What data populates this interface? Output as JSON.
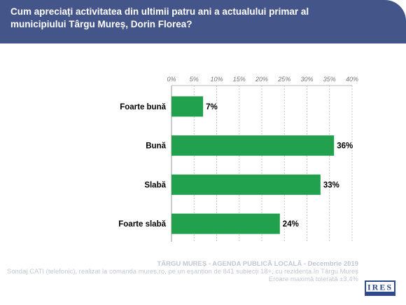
{
  "header": {
    "question": "Cum apreciați activitatea din ultimii patru ani a actualului primar al municipiului Târgu Mureș, Dorin Florea?",
    "color": "#44558a"
  },
  "chart_data": {
    "type": "bar",
    "orientation": "horizontal",
    "categories": [
      "Foarte bună",
      "Bună",
      "Slabă",
      "Foarte slabă"
    ],
    "values": [
      7,
      36,
      33,
      24
    ],
    "value_labels": [
      "7%",
      "36%",
      "33%",
      "24%"
    ],
    "xlim": [
      0,
      40
    ],
    "xticks": [
      "0%",
      "5%",
      "10%",
      "15%",
      "20%",
      "25%",
      "30%",
      "35%",
      "40%"
    ],
    "bar_color": "#21a04d",
    "grid": true,
    "axis_position": "top"
  },
  "footer": {
    "line1": "TÂRGU MUREȘ - AGENDA PUBLICĂ LOCALĂ - Decembrie 2019",
    "line2": "Sondaj CATI (telefonic), realizat la comanda mures.ro, pe un eșantion de 841 subiecți 18+, cu rezidența în Târgu Mureș",
    "line3": "Eroare maximă tolerată ±3,4%",
    "logo_text": "IRES"
  }
}
